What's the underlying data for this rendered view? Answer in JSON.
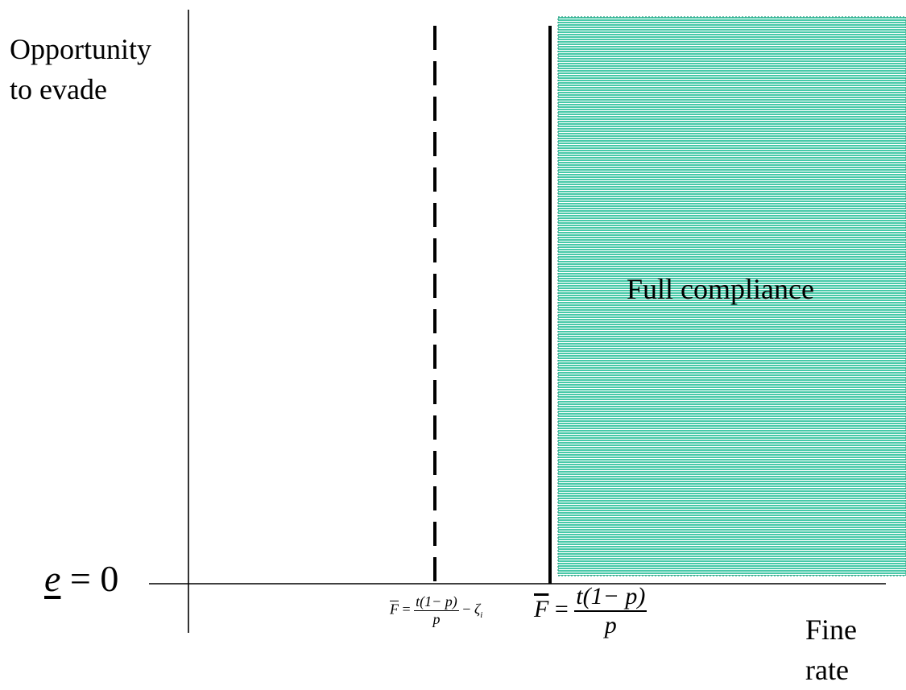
{
  "y_axis_label": [
    "Opportunity",
    "to evade"
  ],
  "x_axis_label": [
    "Fine",
    "rate"
  ],
  "region_label": "Full compliance",
  "origin_label": {
    "var": "e",
    "rel": "=",
    "val": "0"
  },
  "threshold_dashed": {
    "lhs": "F",
    "num": "t(1− p)",
    "den": "p",
    "minus": "−",
    "zeta": "ζ",
    "sub": "i"
  },
  "threshold_solid": {
    "lhs": "F",
    "num": "t(1− p)",
    "den": "p"
  },
  "colors": {
    "region_fill": "#47c9a8",
    "line": "#000000"
  }
}
